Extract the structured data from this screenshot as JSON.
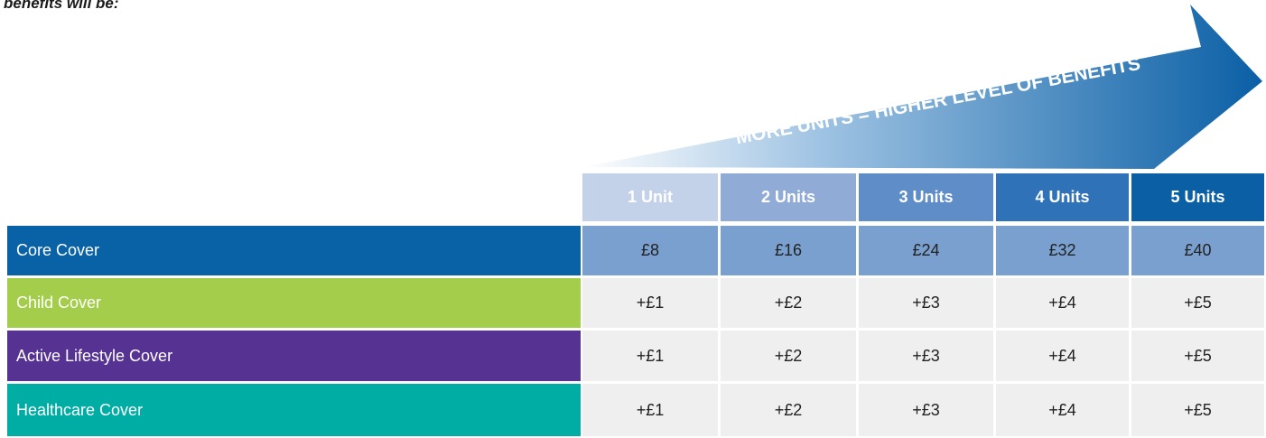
{
  "intro": "benefits will be:",
  "arrow_label": "MORE UNITS = HIGHER LEVEL OF BENEFITS",
  "table": {
    "columns": [
      "1 Unit",
      "2 Units",
      "3 Units",
      "4 Units",
      "5 Units"
    ],
    "rows": [
      {
        "label": "Core Cover",
        "cells": [
          "£8",
          "£16",
          "£24",
          "£32",
          "£40"
        ]
      },
      {
        "label": "Child Cover",
        "cells": [
          "+£1",
          "+£2",
          "+£3",
          "+£4",
          "+£5"
        ]
      },
      {
        "label": "Active Lifestyle Cover",
        "cells": [
          "+£1",
          "+£2",
          "+£3",
          "+£4",
          "+£5"
        ]
      },
      {
        "label": "Healthcare Cover",
        "cells": [
          "+£1",
          "+£2",
          "+£3",
          "+£4",
          "+£5"
        ]
      }
    ]
  }
}
